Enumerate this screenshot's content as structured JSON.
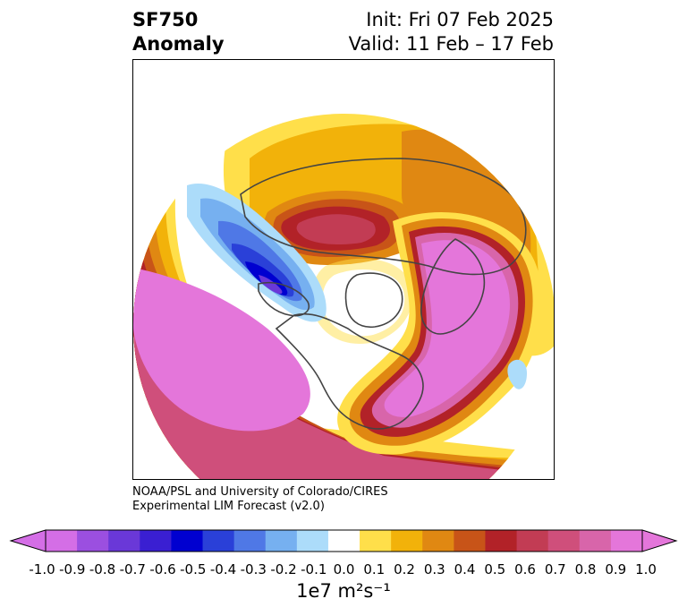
{
  "header": {
    "variable": "SF750",
    "kind": "Anomaly",
    "init": "Init: Fri 07 Feb 2025",
    "valid": "Valid: 11 Feb – 17 Feb"
  },
  "credit": {
    "line1": "NOAA/PSL and University of Colorado/CIRES",
    "line2": "Experimental LIM Forecast (v2.0)"
  },
  "colorbar": {
    "label": "1e7 m²s⁻¹",
    "ticks": [
      "-1.0",
      "-0.9",
      "-0.8",
      "-0.7",
      "-0.6",
      "-0.5",
      "-0.4",
      "-0.3",
      "-0.2",
      "-0.1",
      "0.0",
      "0.1",
      "0.2",
      "0.3",
      "0.4",
      "0.5",
      "0.6",
      "0.7",
      "0.8",
      "0.9",
      "1.0"
    ],
    "colors": [
      "#d46ee6",
      "#9b4fe0",
      "#6a38d8",
      "#3a1fd2",
      "#0000d0",
      "#2a40d8",
      "#4f78e6",
      "#76b0f0",
      "#acdcfa",
      "#ffffff",
      "#ffdf4a",
      "#f2b20a",
      "#e08812",
      "#c85418",
      "#b22228",
      "#c23c54",
      "#cf4f7b",
      "#d865aa",
      "#e476da"
    ],
    "extend_low": "#d46ee6",
    "extend_high": "#e476da"
  },
  "map": {
    "projection": "north-polar-stereographic",
    "colors": {
      "yellow": "#ffdf4a",
      "gold": "#f2b20a",
      "orange": "#e08812",
      "burnt": "#c85418",
      "red": "#b22228",
      "crimson": "#c23c54",
      "rose": "#cf4f7b",
      "pink": "#d865aa",
      "magenta": "#e476da",
      "ice": "#acdcfa",
      "sky": "#76b0f0",
      "blue": "#4f78e6",
      "royal": "#2a40d8",
      "navy": "#0000d0",
      "indigo": "#3a1fd2",
      "violet": "#6a38d8",
      "land": "#444444"
    }
  }
}
